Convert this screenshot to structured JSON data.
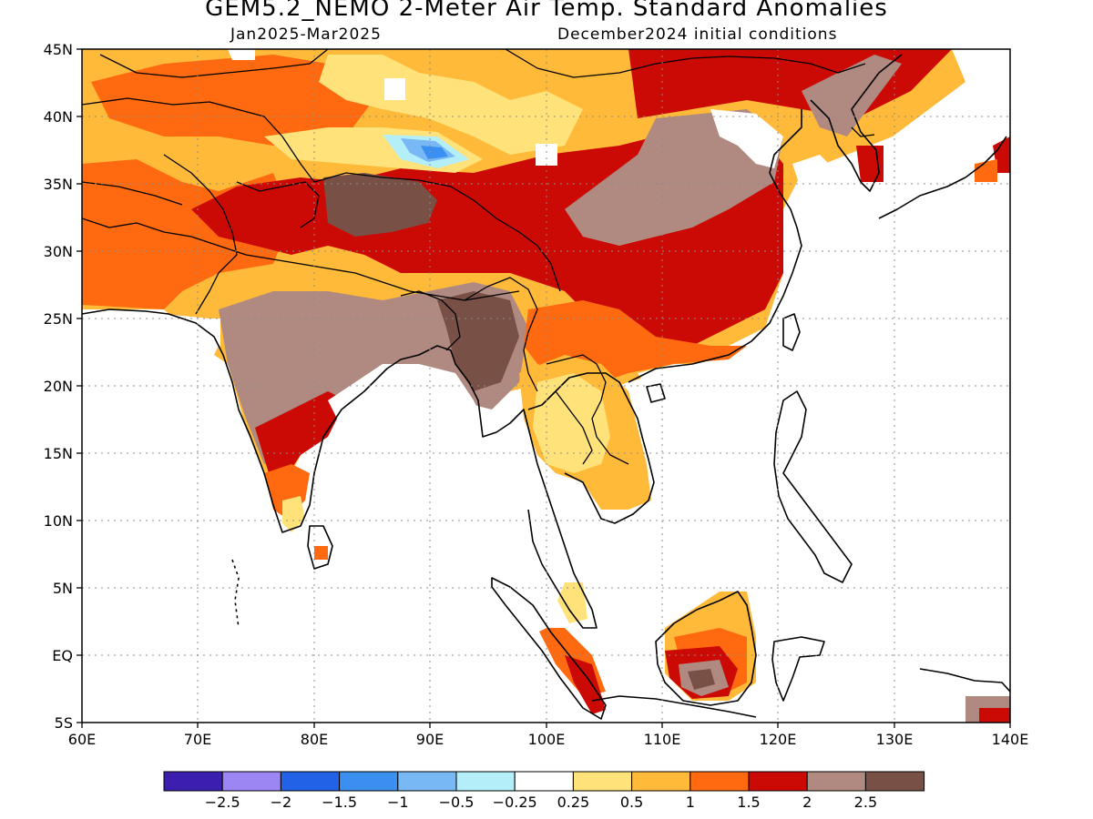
{
  "title": "GEM5.2_NEMO 2-Meter Air Temp. Standard Anomalies",
  "valid_period": "Jan2025-Mar2025",
  "initial_conditions": "December2024 initial conditions",
  "lat_labels": [
    "45N",
    "40N",
    "35N",
    "30N",
    "25N",
    "20N",
    "15N",
    "10N",
    "5N",
    "EQ",
    "5S"
  ],
  "lon_labels": [
    "60E",
    "70E",
    "80E",
    "90E",
    "100E",
    "110E",
    "120E",
    "130E",
    "140E"
  ],
  "legend": {
    "colors": [
      "#3d1fb0",
      "#9b86f4",
      "#2162e6",
      "#3b8ff0",
      "#78b8f5",
      "#b4eef8",
      "#ffffff",
      "#ffe27a",
      "#ffba3a",
      "#ff6a10",
      "#cc0a05",
      "#b08a80",
      "#785046"
    ],
    "labels": [
      "-2.5",
      "-2",
      "-1.5",
      "-1",
      "-0.5",
      "-0.25",
      "0.25",
      "0.5",
      "1",
      "1.5",
      "2",
      "2.5"
    ]
  },
  "palette": {
    "yellow": "#ffe27a",
    "light_orange": "#ffba3a",
    "orange": "#ff6a10",
    "red": "#cc0a05",
    "tan": "#b08a80",
    "brown": "#785046",
    "light_blue": "#78b8f5",
    "pale_blue": "#b4eef8",
    "blue": "#3b8ff0"
  }
}
